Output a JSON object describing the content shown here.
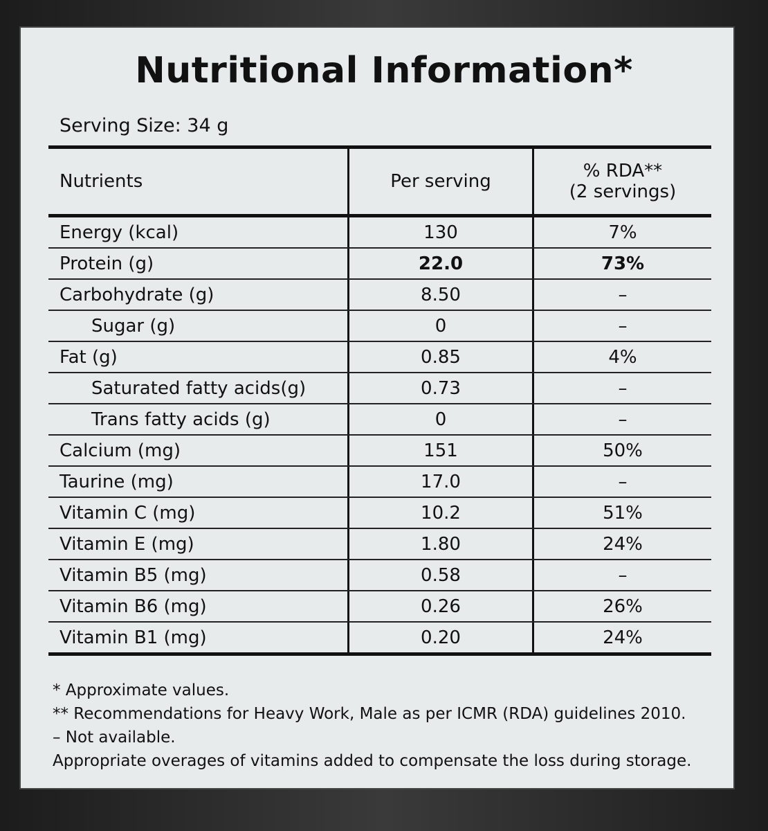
{
  "title": "Nutritional Information*",
  "serving_size": "Serving Size: 34 g",
  "table": {
    "headers": [
      "Nutrients",
      "Per serving",
      [
        "% RDA**",
        "(2 servings)"
      ]
    ],
    "rows": [
      [
        "Energy (kcal)",
        "130",
        "7%"
      ],
      [
        "Protein (g)",
        "22.0",
        "73%"
      ],
      [
        "Carbohydrate (g)",
        "8.50",
        "–"
      ],
      [
        "Sugar (g)",
        "0",
        "–"
      ],
      [
        "Fat (g)",
        "0.85",
        "4%"
      ],
      [
        "Saturated fatty acids(g)",
        "0.73",
        "–"
      ],
      [
        "Trans fatty acids (g)",
        "0",
        "–"
      ],
      [
        "Calcium (mg)",
        "151",
        "50%"
      ],
      [
        "Taurine (mg)",
        "17.0",
        "–"
      ],
      [
        "Vitamin C (mg)",
        "10.2",
        "51%"
      ],
      [
        "Vitamin E (mg)",
        "1.80",
        "24%"
      ],
      [
        "Vitamin B5 (mg)",
        "0.58",
        "–"
      ],
      [
        "Vitamin B6 (mg)",
        "0.26",
        "26%"
      ],
      [
        "Vitamin B1 (mg)",
        "0.20",
        "24%"
      ]
    ]
  },
  "footnotes": [
    "*  Approximate values.",
    "** Recommendations for Heavy Work, Male as per ICMR (RDA) guidelines 2010.",
    "–  Not available.",
    "Appropriate overages of vitamins added to compensate the loss during storage."
  ]
}
